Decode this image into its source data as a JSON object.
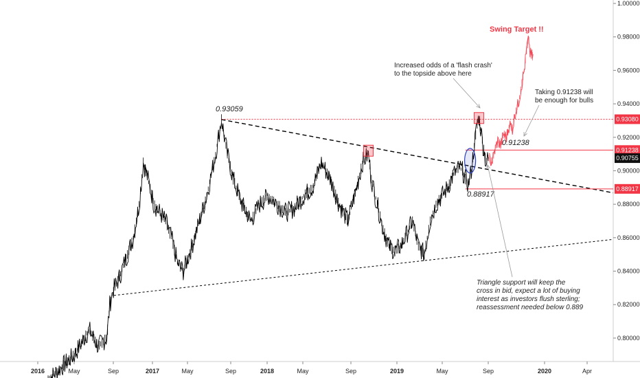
{
  "chart_data": {
    "type": "candlestick",
    "title": "",
    "ylim": [
      0.786,
      1.0
    ],
    "y_ticks": [
      "1.00000",
      "0.98000",
      "0.96000",
      "0.94000",
      "0.92000",
      "0.90000",
      "0.88000",
      "0.86000",
      "0.84000",
      "0.82000",
      "0.80000"
    ],
    "x_ticks": [
      {
        "label": "2016",
        "year": true
      },
      {
        "label": "May",
        "year": false
      },
      {
        "label": "Sep",
        "year": false
      },
      {
        "label": "2017",
        "year": true
      },
      {
        "label": "May",
        "year": false
      },
      {
        "label": "Sep",
        "year": false
      },
      {
        "label": "2018",
        "year": true
      },
      {
        "label": "May",
        "year": false
      },
      {
        "label": "Sep",
        "year": false
      },
      {
        "label": "2019",
        "year": true
      },
      {
        "label": "May",
        "year": false
      },
      {
        "label": "Sep",
        "year": false
      },
      {
        "label": "2020",
        "year": true
      },
      {
        "label": "Apr",
        "year": false
      }
    ],
    "price_path": [
      [
        0,
        0.775
      ],
      [
        0.45,
        0.79
      ],
      [
        0.7,
        0.805
      ],
      [
        0.85,
        0.795
      ],
      [
        1.0,
        0.8
      ],
      [
        1.05,
        0.82
      ],
      [
        1.1,
        0.828
      ],
      [
        1.2,
        0.835
      ],
      [
        1.35,
        0.85
      ],
      [
        1.45,
        0.86
      ],
      [
        1.55,
        0.88
      ],
      [
        1.62,
        0.905
      ],
      [
        1.7,
        0.895
      ],
      [
        1.8,
        0.88
      ],
      [
        2.0,
        0.87
      ],
      [
        2.1,
        0.86
      ],
      [
        2.2,
        0.845
      ],
      [
        2.3,
        0.84
      ],
      [
        2.45,
        0.855
      ],
      [
        2.7,
        0.885
      ],
      [
        2.85,
        0.91
      ],
      [
        2.95,
        0.93059
      ],
      [
        3.05,
        0.91
      ],
      [
        3.15,
        0.895
      ],
      [
        3.3,
        0.88
      ],
      [
        3.45,
        0.87
      ],
      [
        3.6,
        0.88
      ],
      [
        3.75,
        0.885
      ],
      [
        3.9,
        0.88
      ],
      [
        4.05,
        0.875
      ],
      [
        4.2,
        0.878
      ],
      [
        4.35,
        0.885
      ],
      [
        4.5,
        0.89
      ],
      [
        4.65,
        0.905
      ],
      [
        4.8,
        0.895
      ],
      [
        4.95,
        0.88
      ],
      [
        5.1,
        0.87
      ],
      [
        5.25,
        0.89
      ],
      [
        5.35,
        0.905
      ],
      [
        5.45,
        0.91
      ],
      [
        5.5,
        0.895
      ],
      [
        5.6,
        0.88
      ],
      [
        5.7,
        0.865
      ],
      [
        5.8,
        0.855
      ],
      [
        5.9,
        0.852
      ],
      [
        6.0,
        0.855
      ],
      [
        6.1,
        0.862
      ],
      [
        6.2,
        0.87
      ],
      [
        6.3,
        0.855
      ],
      [
        6.4,
        0.85
      ],
      [
        6.5,
        0.87
      ],
      [
        6.6,
        0.88
      ],
      [
        6.7,
        0.885
      ],
      [
        6.8,
        0.89
      ],
      [
        6.9,
        0.898
      ],
      [
        7.0,
        0.902
      ],
      [
        7.05,
        0.9
      ],
      [
        7.1,
        0.895
      ],
      [
        7.15,
        0.892
      ],
      [
        7.2,
        0.9
      ],
      [
        7.25,
        0.915
      ],
      [
        7.3,
        0.928
      ],
      [
        7.33,
        0.932
      ],
      [
        7.36,
        0.925
      ],
      [
        7.4,
        0.915
      ],
      [
        7.45,
        0.905
      ],
      [
        7.5,
        0.9075
      ]
    ],
    "projection_path": [
      [
        7.5,
        0.9075
      ],
      [
        7.55,
        0.905
      ],
      [
        7.6,
        0.912
      ],
      [
        7.65,
        0.918
      ],
      [
        7.7,
        0.915
      ],
      [
        7.75,
        0.922
      ],
      [
        7.8,
        0.92
      ],
      [
        7.85,
        0.928
      ],
      [
        7.9,
        0.925
      ],
      [
        7.95,
        0.935
      ],
      [
        8.0,
        0.94
      ],
      [
        8.05,
        0.95
      ],
      [
        8.1,
        0.96
      ],
      [
        8.15,
        0.975
      ],
      [
        8.18,
        0.978
      ],
      [
        8.2,
        0.97
      ],
      [
        8.25,
        0.968
      ]
    ],
    "lines": [
      {
        "kind": "downtrend",
        "x1": 2.95,
        "y1": 0.93059,
        "x2": 11.8,
        "y2": 0.8868,
        "dash": "6,4",
        "color": "#000000",
        "width": 1.4
      },
      {
        "kind": "support",
        "x1": 1.12,
        "y1": 0.8255,
        "x2": 11.8,
        "y2": 0.859,
        "dash": "3,3",
        "color": "#000000",
        "width": 1.0
      },
      {
        "kind": "resistance-dotted",
        "x1": 2.95,
        "y1": 0.9308,
        "x2": 11.8,
        "y2": 0.9308,
        "dash": "2,2",
        "color": "#f23645",
        "width": 1.0
      },
      {
        "kind": "level-91238",
        "x1": 7.1,
        "y1": 0.91238,
        "x2": 11.8,
        "y2": 0.91238,
        "dash": "",
        "color": "#f23645",
        "width": 1.0
      },
      {
        "kind": "level-88917",
        "x1": 7.1,
        "y1": 0.88917,
        "x2": 11.8,
        "y2": 0.88917,
        "dash": "",
        "color": "#f23645",
        "width": 1.0
      }
    ],
    "markers": [
      {
        "kind": "box",
        "x": 5.45,
        "y": 0.912,
        "color": "#f23645"
      },
      {
        "kind": "box",
        "x": 7.33,
        "y": 0.9315,
        "color": "#f23645"
      },
      {
        "kind": "ellipse",
        "x": 7.18,
        "y": 0.906,
        "color": "#2a3fbf"
      }
    ],
    "price_badges": [
      {
        "label": "0.93080",
        "value": 0.9308,
        "bg": "#f23645"
      },
      {
        "label": "0.91238",
        "value": 0.91238,
        "bg": "#f23645"
      },
      {
        "label": "0.90755",
        "value": 0.90755,
        "bg": "#111111"
      },
      {
        "label": "0.88917",
        "value": 0.88917,
        "bg": "#f23645"
      }
    ],
    "level_labels": {
      "high": "0.93059",
      "target": "0.91238",
      "low": "0.88917"
    },
    "annotations": {
      "swing_target": "Swing Target !!",
      "flash_crash": [
        "Increased odds of a 'flash crash'",
        "to the topside above here"
      ],
      "taking": [
        "Taking 0.91238 will",
        "be enough for bulls"
      ],
      "triangle": [
        "Triangle support will keep the",
        "cross in bid, expect a lot of buying",
        "interest as investors flush sterling;",
        "reassessment needed below 0.889"
      ]
    },
    "colors": {
      "price": "#000000",
      "projection": "#f23645",
      "accent_red": "#f23645",
      "ellipse": "#2a3fbf"
    }
  }
}
